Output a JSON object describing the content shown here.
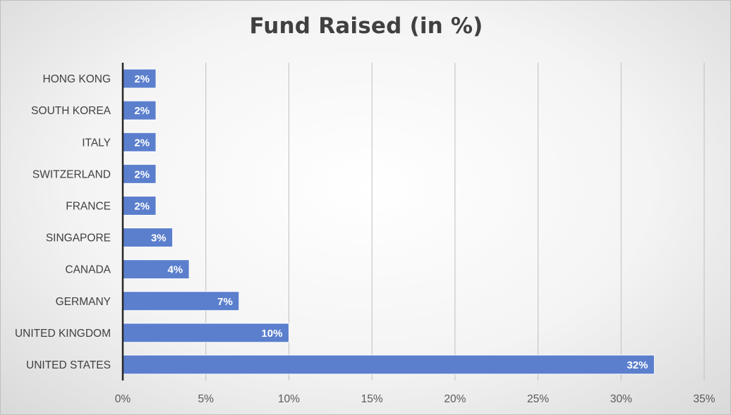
{
  "chart_data": {
    "type": "bar",
    "orientation": "horizontal",
    "title": "Fund Raised (in %)",
    "xlabel": "",
    "ylabel": "",
    "categories": [
      "UNITED STATES",
      "UNITED KINGDOM",
      "GERMANY",
      "CANADA",
      "SINGAPORE",
      "FRANCE",
      "SWITZERLAND",
      "ITALY",
      "SOUTH KOREA",
      "HONG KONG"
    ],
    "series": [
      {
        "values": [
          32,
          10,
          7,
          4,
          3,
          2,
          2,
          2,
          2,
          2
        ],
        "data_labels": [
          "32%",
          "10%",
          "7%",
          "4%",
          "3%",
          "2%",
          "2%",
          "2%",
          "2%",
          "2%"
        ],
        "color": "#5b7fcd"
      }
    ],
    "xlim": [
      0,
      35
    ],
    "x_ticks": [
      0,
      5,
      10,
      15,
      20,
      25,
      30,
      35
    ],
    "x_tick_labels": [
      "0%",
      "5%",
      "10%",
      "15%",
      "20%",
      "25%",
      "30%",
      "35%"
    ],
    "grid": true,
    "legend": "none"
  }
}
